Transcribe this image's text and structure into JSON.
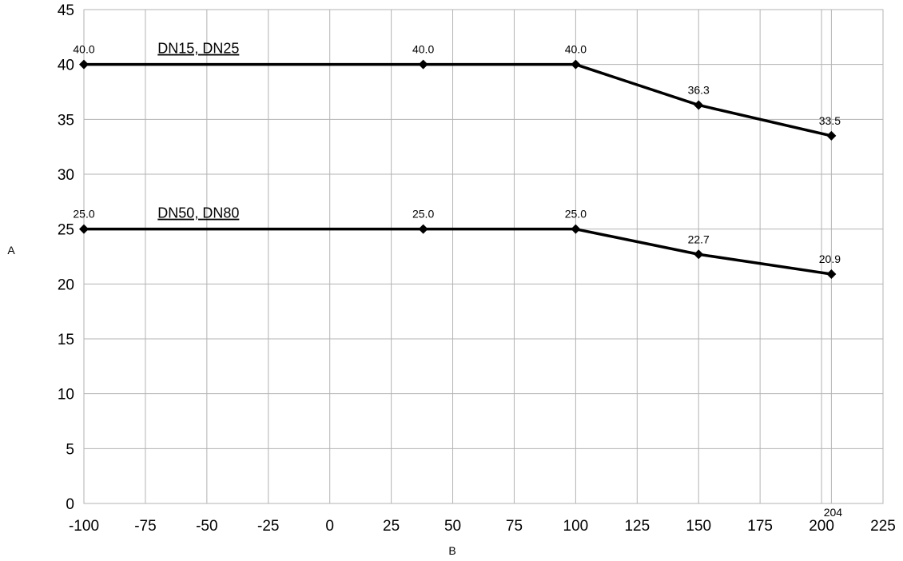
{
  "chart_data": {
    "type": "line",
    "title": "",
    "xlabel": "B",
    "ylabel": "A",
    "xlim": [
      -100,
      225
    ],
    "ylim": [
      0,
      45
    ],
    "xticks": [
      -100,
      -75,
      -50,
      -25,
      0,
      25,
      50,
      75,
      100,
      125,
      150,
      175,
      200,
      225
    ],
    "yticks": [
      0,
      5,
      10,
      15,
      20,
      25,
      30,
      35,
      40,
      45
    ],
    "extra_x_marker": {
      "value": 204,
      "label": "204"
    },
    "grid": true,
    "series": [
      {
        "name": "DN15, DN25",
        "x": [
          -100,
          38,
          100,
          150,
          204
        ],
        "y": [
          40.0,
          40.0,
          40.0,
          36.3,
          33.5
        ],
        "labels": [
          "40.0",
          "40.0",
          "40.0",
          "36.3",
          "33.5"
        ],
        "name_at_x": -70
      },
      {
        "name": "DN50, DN80",
        "x": [
          -100,
          38,
          100,
          150,
          204
        ],
        "y": [
          25.0,
          25.0,
          25.0,
          22.7,
          20.9
        ],
        "labels": [
          "25.0",
          "25.0",
          "25.0",
          "22.7",
          "20.9"
        ],
        "name_at_x": -70
      }
    ],
    "line_color": "#000000",
    "grid_color": "#b3b3b3"
  }
}
